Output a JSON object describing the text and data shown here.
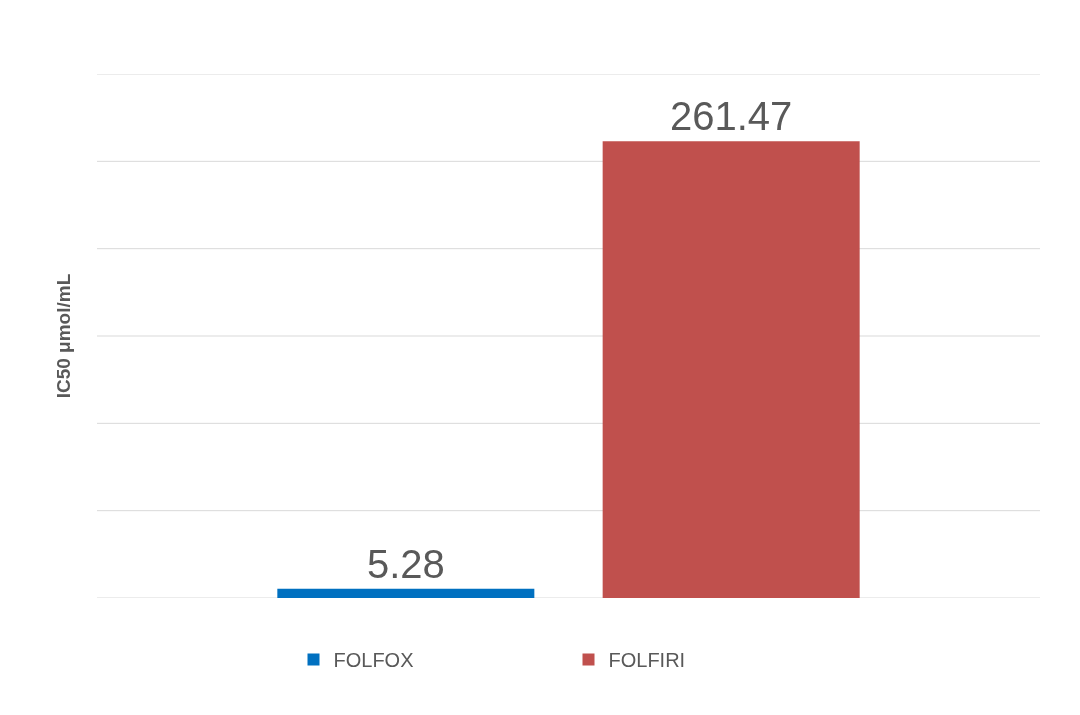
{
  "chart_data": {
    "type": "bar",
    "ylabel": "IC50 μmol/mL",
    "categories": [
      null
    ],
    "series": [
      {
        "name": "FOLFOX",
        "color": "#0070c0",
        "values": [
          5.28
        ]
      },
      {
        "name": "FOLFIRI",
        "color": "#c0504d",
        "values": [
          261.47
        ]
      }
    ],
    "ylim": [
      0,
      300
    ],
    "yticks": [
      {
        "value": 0,
        "label": null
      },
      {
        "value": 50,
        "label": null
      },
      {
        "value": 100,
        "label": null
      },
      {
        "value": 150,
        "label": null
      },
      {
        "value": 200,
        "label": null
      },
      {
        "value": 250,
        "label": null
      },
      {
        "value": 300,
        "label": null
      }
    ],
    "grid": "y",
    "legend": "bottom",
    "data_labels": true
  }
}
